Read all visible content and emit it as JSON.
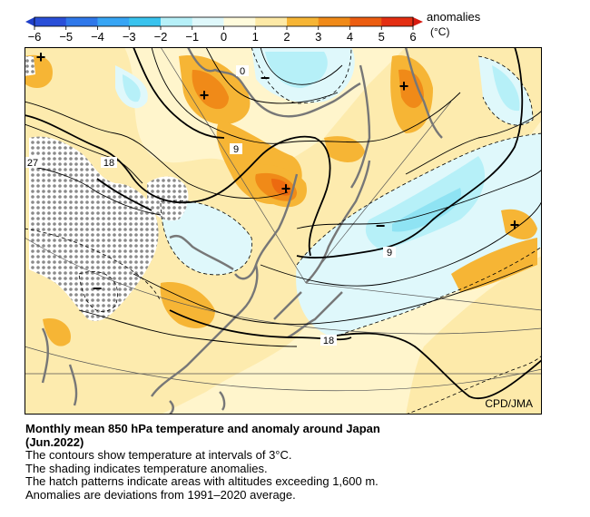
{
  "colorbar": {
    "ticks": [
      "−6",
      "−5",
      "−4",
      "−3",
      "−2",
      "−1",
      "0",
      "1",
      "2",
      "3",
      "4",
      "5",
      "6"
    ],
    "label": "anomalies",
    "unit": "(°C)",
    "colors": {
      "-6": "#2a4fd8",
      "-5": "#2f78ea",
      "-4": "#37a5f4",
      "-3": "#39c3ee",
      "-2": "#b6f0f8",
      "-1": "#dff8fb",
      "0": "#fffbdc",
      "1": "#fde9a6",
      "2": "#f6b535",
      "3": "#f08a18",
      "4": "#ec5d10",
      "5": "#e42e12"
    }
  },
  "map": {
    "contour_labels": [
      "0",
      "9",
      "18",
      "27",
      "18",
      "9",
      "18"
    ],
    "anomaly_markers": [
      "+",
      "+",
      "+",
      "+",
      "+",
      "−",
      "−",
      "−"
    ],
    "credit": "CPD/JMA"
  },
  "caption": {
    "title_line1": "Monthly mean 850 hPa temperature and anomaly around Japan",
    "title_line2": "(Jun.2022)",
    "line1": "The contours show temperature at intervals of 3°C.",
    "line2": "The shading indicates temperature anomalies.",
    "line3": "The hatch patterns indicate areas with altitudes exceeding 1,600 m.",
    "line4": "Anomalies are deviations from 1991–2020 average."
  }
}
